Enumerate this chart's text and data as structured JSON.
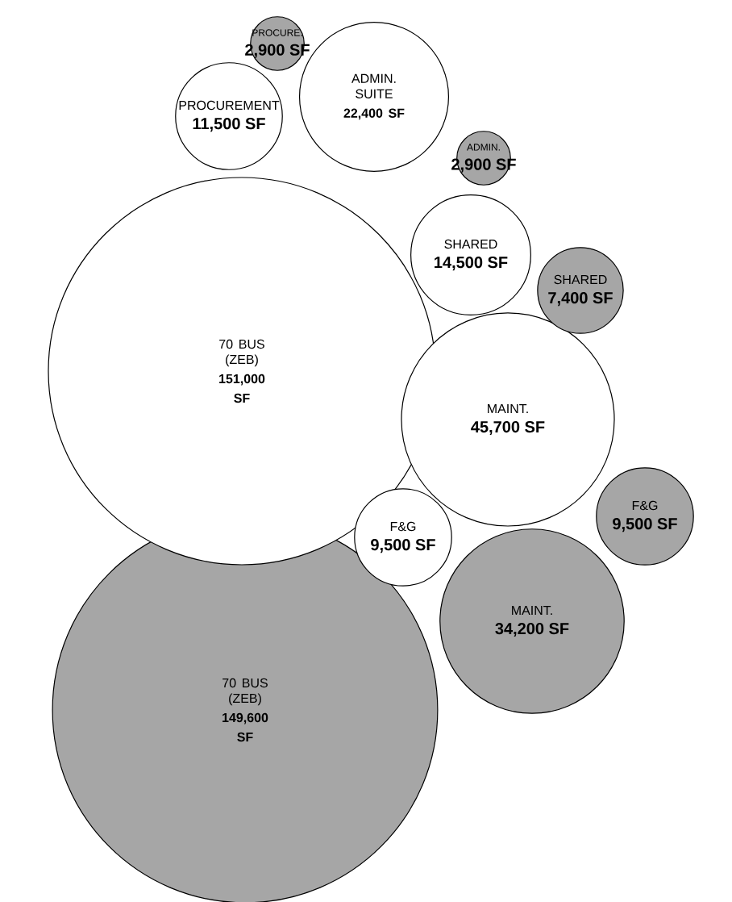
{
  "chart_data": {
    "type": "other",
    "categories": [
      "PROCURE.",
      "PROCUREMENT",
      "ADMIN. SUITE",
      "ADMIN.",
      "SHARED",
      "SHARED",
      "70 BUS (ZEB)",
      "MAINT.",
      "F&G",
      "F&G",
      "MAINT.",
      "70 BUS (ZEB)"
    ],
    "values": [
      2900,
      11500,
      22400,
      2900,
      14500,
      7400,
      151000,
      45700,
      9500,
      9500,
      34200,
      149600
    ],
    "value_labels": [
      "2,900 SF",
      "11,500 SF",
      "22,400 SF",
      "2,900 SF",
      "14,500 SF",
      "7,400 SF",
      "151,000 SF",
      "45,700 SF",
      "9,500 SF",
      "9,500 SF",
      "34,200 SF",
      "149,600 SF"
    ],
    "colors": [
      "#a6a6a6",
      "#ffffff",
      "#ffffff",
      "#a6a6a6",
      "#ffffff",
      "#a6a6a6",
      "#ffffff",
      "#ffffff",
      "#a6a6a6",
      "#ffffff",
      "#a6a6a6",
      "#a6a6a6"
    ]
  }
}
